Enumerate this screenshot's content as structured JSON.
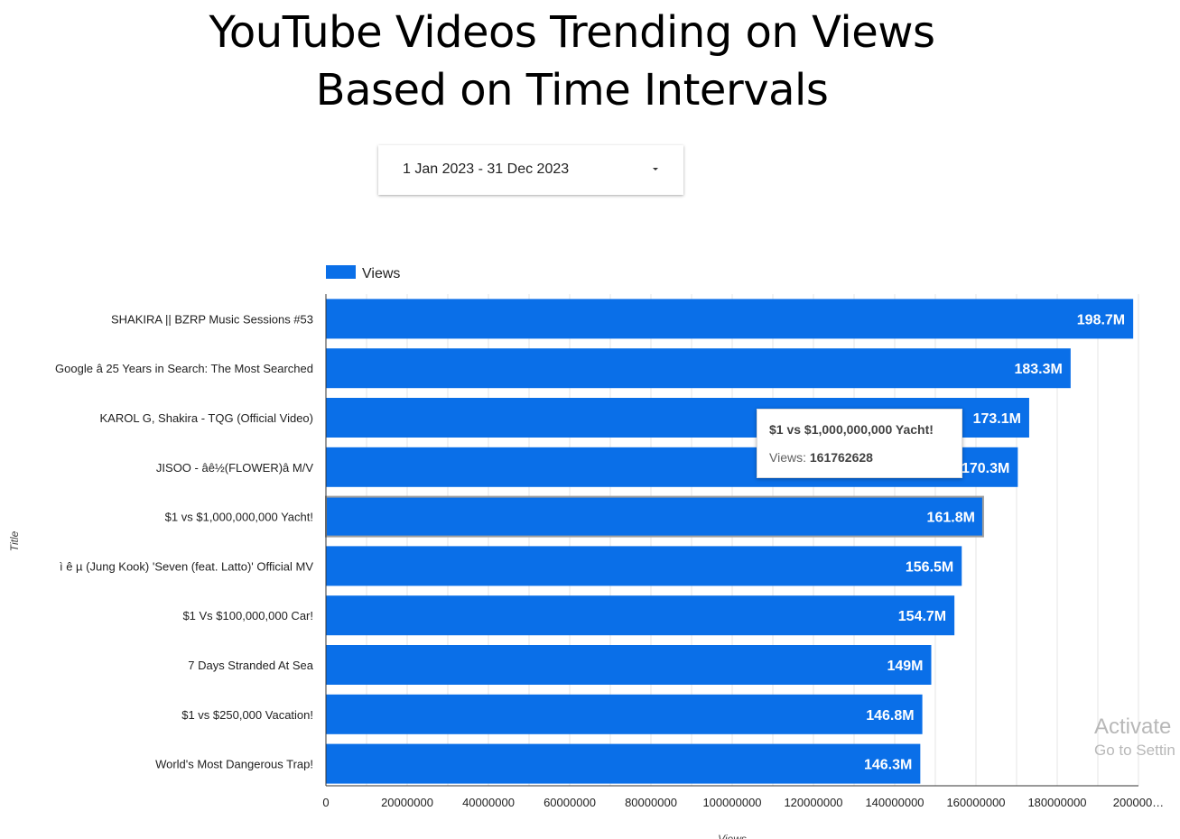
{
  "page": {
    "title_line1": "YouTube Videos Trending on Views",
    "title_line2": "Based on Time Intervals"
  },
  "date_range": {
    "value": "1 Jan 2023 - 31 Dec 2023",
    "icon": "caret-down-icon"
  },
  "tooltip": {
    "title": "$1 vs $1,000,000,000 Yacht!",
    "label": "Views:",
    "value": "161762628"
  },
  "watermark": {
    "line1": "Activate",
    "line2": "Go to Settin"
  },
  "colors": {
    "bar": "#0a6fe8",
    "bar_highlight_border": "#9e9e9e",
    "grid": "#e6e6e6",
    "axis": "#333333"
  },
  "chart_data": {
    "type": "bar",
    "orientation": "horizontal",
    "legend": "Views",
    "legend_position": "top-left",
    "xlabel": "Views",
    "ylabel": "Title",
    "xlim": [
      0,
      200000000
    ],
    "x_ticks": [
      "0",
      "20000000",
      "40000000",
      "60000000",
      "80000000",
      "100000000",
      "120000000",
      "140000000",
      "160000000",
      "180000000",
      "200000…"
    ],
    "grid": true,
    "highlighted_category": "$1 vs $1,000,000,000 Yacht!",
    "categories": [
      "SHAKIRA || BZRP Music Sessions #53",
      "Google â 25 Years in Search: The Most Searched",
      "KAROL G, Shakira - TQG (Official Video)",
      "JISOO - âê½(FLOWER)â M/V",
      "$1 vs $1,000,000,000 Yacht!",
      "ì ê µ (Jung Kook) 'Seven (feat. Latto)' Official MV",
      "$1 Vs $100,000,000 Car!",
      "7 Days Stranded At Sea",
      "$1 vs $250,000 Vacation!",
      "World's Most Dangerous Trap!"
    ],
    "values": [
      198700000,
      183300000,
      173100000,
      170300000,
      161762628,
      156500000,
      154700000,
      149000000,
      146800000,
      146300000
    ],
    "value_labels": [
      "198.7M",
      "183.3M",
      "173.1M",
      "170.3M",
      "161.8M",
      "156.5M",
      "154.7M",
      "149M",
      "146.8M",
      "146.3M"
    ]
  }
}
